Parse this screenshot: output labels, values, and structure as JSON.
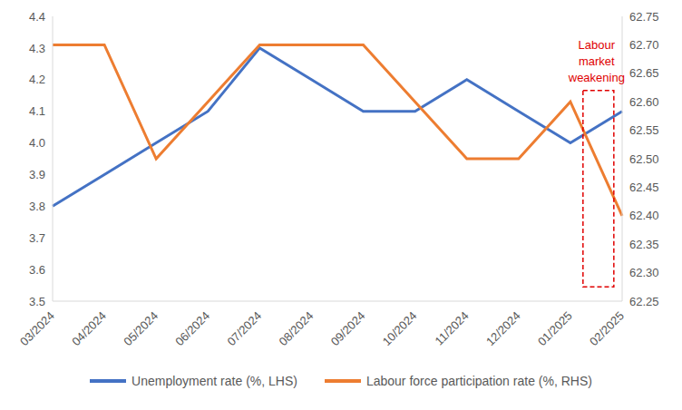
{
  "chart_data": {
    "type": "line",
    "categories": [
      "03/2024",
      "04/2024",
      "05/2024",
      "06/2024",
      "07/2024",
      "08/2024",
      "09/2024",
      "10/2024",
      "11/2024",
      "12/2024",
      "01/2025",
      "02/2025"
    ],
    "series": [
      {
        "name": "Unemployment rate (%, LHS)",
        "color": "#4472c4",
        "marker": "none",
        "axis": "y",
        "values": [
          3.8,
          3.9,
          4.0,
          4.1,
          4.3,
          4.2,
          4.1,
          4.1,
          4.2,
          4.1,
          4.0,
          4.1
        ]
      },
      {
        "name": "Labour force participation rate (%, RHS)",
        "color": "#ed7d31",
        "marker": "none",
        "axis": "y2",
        "values": [
          62.7,
          62.7,
          62.5,
          62.6,
          62.7,
          62.7,
          62.7,
          62.6,
          62.5,
          62.5,
          62.6,
          62.4
        ]
      }
    ],
    "ylim": [
      3.5,
      4.4
    ],
    "yticks": [
      3.5,
      3.6,
      3.7,
      3.8,
      3.9,
      {
        "value": 4,
        "label": "4.0"
      },
      4.1,
      4.2,
      4.3,
      4.4
    ],
    "y2lim": [
      62.25,
      62.75
    ],
    "y2ticks": [
      62.25,
      {
        "value": 62.3,
        "label": "62.30"
      },
      62.35,
      {
        "value": 62.4,
        "label": "62.40"
      },
      62.45,
      {
        "value": 62.5,
        "label": "62.50"
      },
      62.55,
      {
        "value": 62.6,
        "label": "62.60"
      },
      62.65,
      {
        "value": 62.7,
        "label": "62.70"
      },
      62.75
    ],
    "grid": false,
    "annotation": {
      "text": "Labour market weakening",
      "x": "02/2025",
      "color": "#e00000"
    }
  }
}
